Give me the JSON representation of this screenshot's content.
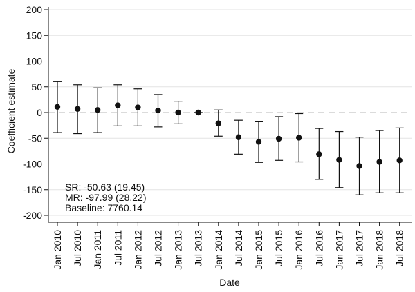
{
  "chart_data": {
    "type": "scatter",
    "xlabel": "Date",
    "ylabel": "Coefficient estimate",
    "ylim": [
      -200,
      200
    ],
    "yticks": [
      200,
      150,
      100,
      50,
      0,
      -50,
      -100,
      -150,
      -200
    ],
    "grid": true,
    "reference_line": {
      "y": 0,
      "style": "dashed"
    },
    "categories": [
      "Jan 2010",
      "Jul 2010",
      "Jan 2011",
      "Jul 2011",
      "Jan 2012",
      "Jul 2012",
      "Jan 2013",
      "Jul 2013",
      "Jan 2014",
      "Jul 2014",
      "Jan 2015",
      "Jul 2015",
      "Jan 2016",
      "Jul 2016",
      "Jan 2017",
      "Jul 2017",
      "Jan 2018",
      "Jul 2018"
    ],
    "series": [
      {
        "estimate": [
          11,
          7,
          5,
          14,
          10,
          4,
          0,
          0,
          -21,
          -48,
          -57,
          -51,
          -49,
          -81,
          -92,
          -104,
          -96,
          -93
        ],
        "ci_upper": [
          60,
          54,
          48,
          54,
          46,
          35,
          22,
          0,
          5,
          -15,
          -18,
          -8,
          -2,
          -31,
          -37,
          -48,
          -35,
          -30
        ],
        "ci_lower": [
          -39,
          -41,
          -39,
          -26,
          -26,
          -28,
          -22,
          0,
          -46,
          -81,
          -97,
          -93,
          -96,
          -130,
          -146,
          -160,
          -156,
          -156
        ],
        "color": "#111111"
      }
    ],
    "annotations": [
      "SR: -50.63 (19.45)",
      "MR: -97.99 (28.22)",
      "Baseline: 7760.14"
    ]
  }
}
